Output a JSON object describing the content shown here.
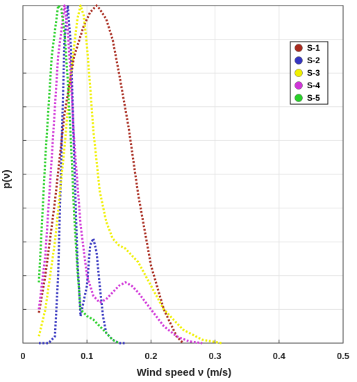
{
  "chart_data": {
    "type": "line",
    "title": "",
    "xlabel": "Wind speed ν (m/s)",
    "ylabel": "p(ν)",
    "xlim": [
      0,
      0.5
    ],
    "xticks": [
      0,
      0.1,
      0.2,
      0.3,
      0.4,
      0.5
    ],
    "xtick_labels": [
      "0",
      "0.1",
      "0.2",
      "0.3",
      "0.4",
      "0.5"
    ],
    "ylim": [
      0,
      1
    ],
    "ytick_count": 10,
    "ytick_labels_visible": false,
    "grid": true,
    "line_style": "dotted",
    "legend_position": "top-right",
    "series": [
      {
        "name": "S-1",
        "color": "#a82a1e",
        "x": [
          0.025,
          0.035,
          0.05,
          0.065,
          0.08,
          0.095,
          0.105,
          0.115,
          0.12,
          0.13,
          0.14,
          0.15,
          0.165,
          0.18,
          0.2,
          0.22,
          0.24,
          0.25
        ],
        "y": [
          0.09,
          0.2,
          0.42,
          0.68,
          0.85,
          0.94,
          0.98,
          1.0,
          0.99,
          0.96,
          0.9,
          0.8,
          0.64,
          0.44,
          0.23,
          0.1,
          0.02,
          0.0
        ]
      },
      {
        "name": "S-2",
        "color": "#3535c0",
        "x": [
          0.025,
          0.04,
          0.05,
          0.055,
          0.06,
          0.065,
          0.07,
          0.075,
          0.08,
          0.085,
          0.09,
          0.1,
          0.105,
          0.11,
          0.115,
          0.12,
          0.125,
          0.13,
          0.14,
          0.15,
          0.16
        ],
        "y": [
          0.0,
          0.0,
          0.02,
          0.2,
          0.55,
          0.9,
          1.0,
          0.88,
          0.55,
          0.25,
          0.08,
          0.17,
          0.29,
          0.31,
          0.27,
          0.17,
          0.08,
          0.03,
          0.01,
          0.0,
          0.0
        ]
      },
      {
        "name": "S-3",
        "color": "#f0f000",
        "x": [
          0.025,
          0.035,
          0.05,
          0.065,
          0.075,
          0.085,
          0.09,
          0.095,
          0.1,
          0.105,
          0.11,
          0.12,
          0.13,
          0.14,
          0.15,
          0.16,
          0.18,
          0.2,
          0.22,
          0.25,
          0.28,
          0.31
        ],
        "y": [
          0.02,
          0.1,
          0.3,
          0.58,
          0.8,
          0.96,
          1.0,
          0.97,
          0.88,
          0.76,
          0.63,
          0.45,
          0.36,
          0.31,
          0.29,
          0.28,
          0.24,
          0.17,
          0.1,
          0.04,
          0.01,
          0.0
        ]
      },
      {
        "name": "S-4",
        "color": "#d035d8",
        "x": [
          0.025,
          0.035,
          0.045,
          0.055,
          0.065,
          0.07,
          0.075,
          0.08,
          0.09,
          0.1,
          0.11,
          0.12,
          0.13,
          0.14,
          0.15,
          0.16,
          0.17,
          0.18,
          0.2,
          0.22,
          0.24,
          0.26,
          0.28
        ],
        "y": [
          0.1,
          0.26,
          0.55,
          0.85,
          1.0,
          0.93,
          0.78,
          0.6,
          0.35,
          0.2,
          0.14,
          0.12,
          0.13,
          0.15,
          0.17,
          0.18,
          0.17,
          0.15,
          0.1,
          0.05,
          0.02,
          0.005,
          0.0
        ]
      },
      {
        "name": "S-5",
        "color": "#28d028",
        "x": [
          0.025,
          0.035,
          0.045,
          0.055,
          0.06,
          0.065,
          0.07,
          0.075,
          0.08,
          0.085,
          0.09,
          0.1,
          0.11,
          0.12,
          0.13,
          0.14,
          0.15
        ],
        "y": [
          0.18,
          0.55,
          0.85,
          1.0,
          0.99,
          0.92,
          0.78,
          0.6,
          0.38,
          0.22,
          0.1,
          0.08,
          0.07,
          0.05,
          0.03,
          0.01,
          0.0
        ]
      }
    ]
  }
}
